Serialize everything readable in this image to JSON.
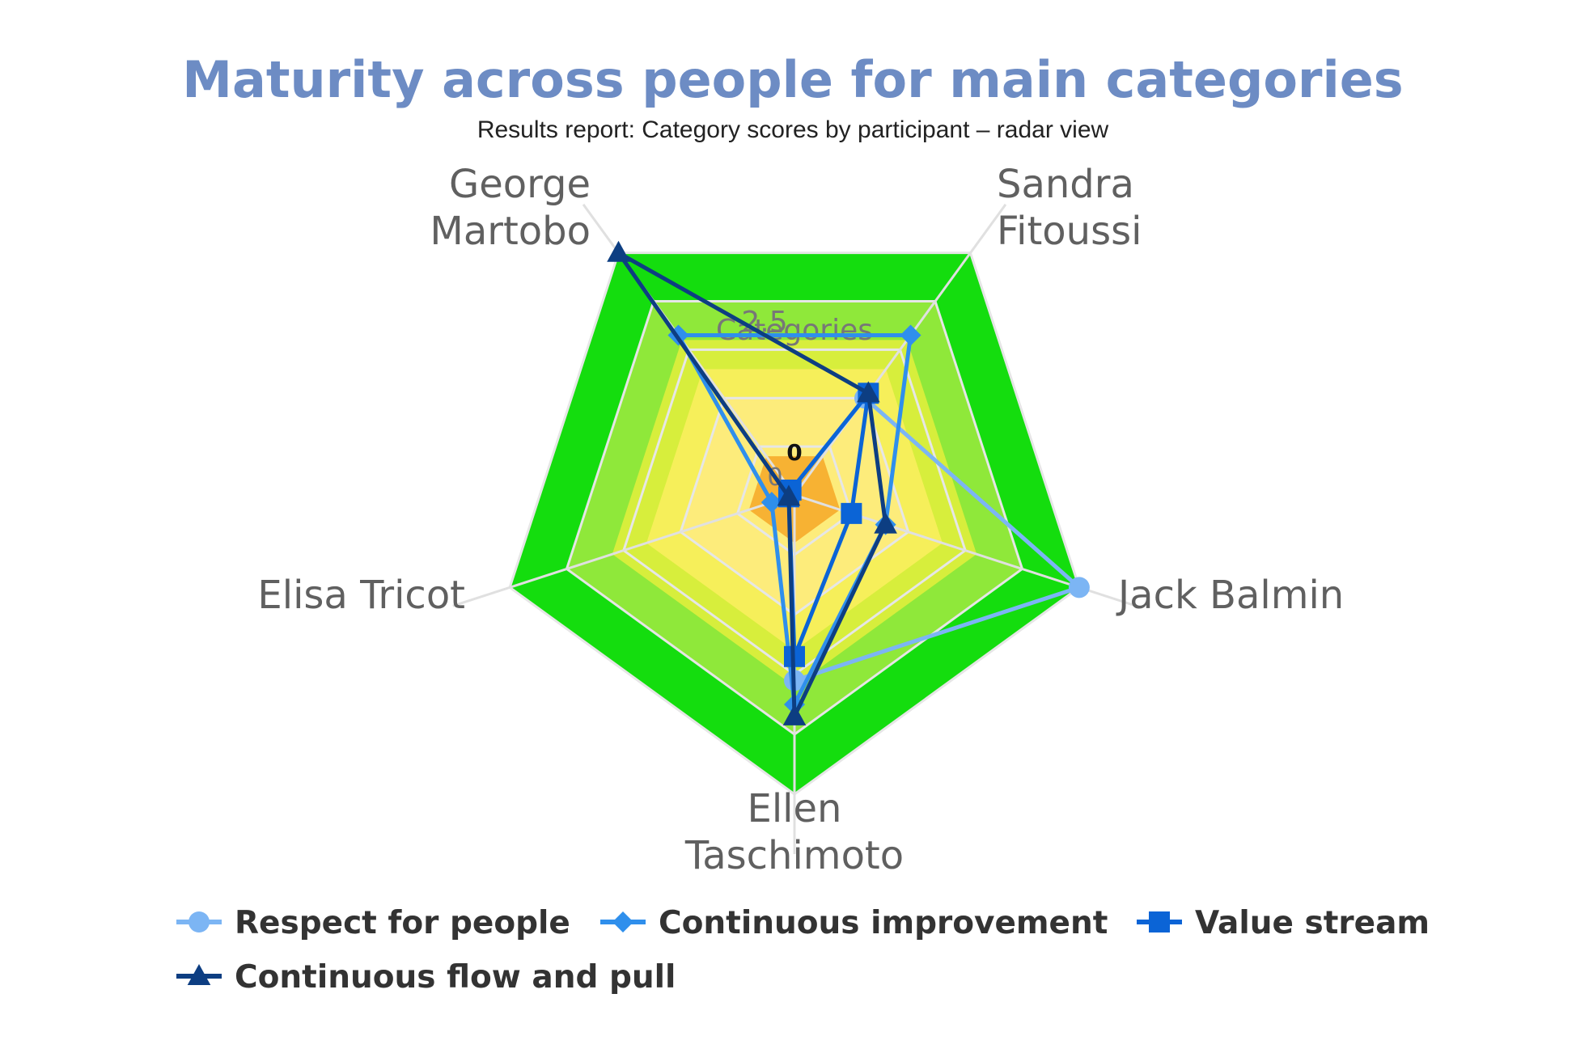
{
  "chart_data": {
    "type": "radar",
    "title": "Maturity across people for main categories",
    "subtitle": "Results report: Category scores by participant – radar view",
    "pane_title": "Categories",
    "axis_tick_label": "2.5",
    "zero_label": "0",
    "zero_label_secondary": "0",
    "categories": [
      "Sandra Fitoussi",
      "Jack Balmin",
      "Ellen Taschimoto",
      "Elisa Tricot",
      "George Martobo"
    ],
    "y_max": 5,
    "bands": [
      {
        "from": 0,
        "to": 0.8,
        "color": "#f7b233"
      },
      {
        "from": 0.8,
        "to": 2.0,
        "color": "#fdec7b"
      },
      {
        "from": 2.0,
        "to": 2.6,
        "color": "#f6ef5a"
      },
      {
        "from": 2.6,
        "to": 3.2,
        "color": "#d7ee3c"
      },
      {
        "from": 3.2,
        "to": 4.0,
        "color": "#8fe83a"
      },
      {
        "from": 4.0,
        "to": 5.0,
        "color": "#14dd0e"
      }
    ],
    "series": [
      {
        "name": "Respect for people",
        "color": "#7cb5f4",
        "marker": "circle",
        "values": [
          2.0,
          5.0,
          3.1,
          0.1,
          0.1
        ]
      },
      {
        "name": "Continuous improvement",
        "color": "#2f8fec",
        "marker": "diamond",
        "values": [
          3.3,
          1.6,
          3.5,
          0.4,
          3.3
        ]
      },
      {
        "name": "Value stream",
        "color": "#0b64d6",
        "marker": "square",
        "values": [
          2.1,
          1.0,
          2.7,
          0.1,
          0.1
        ]
      },
      {
        "name": "Continuous flow and pull",
        "color": "#0d3e82",
        "marker": "triangle",
        "values": [
          2.1,
          1.6,
          3.7,
          0.1,
          5.0
        ]
      }
    ]
  }
}
